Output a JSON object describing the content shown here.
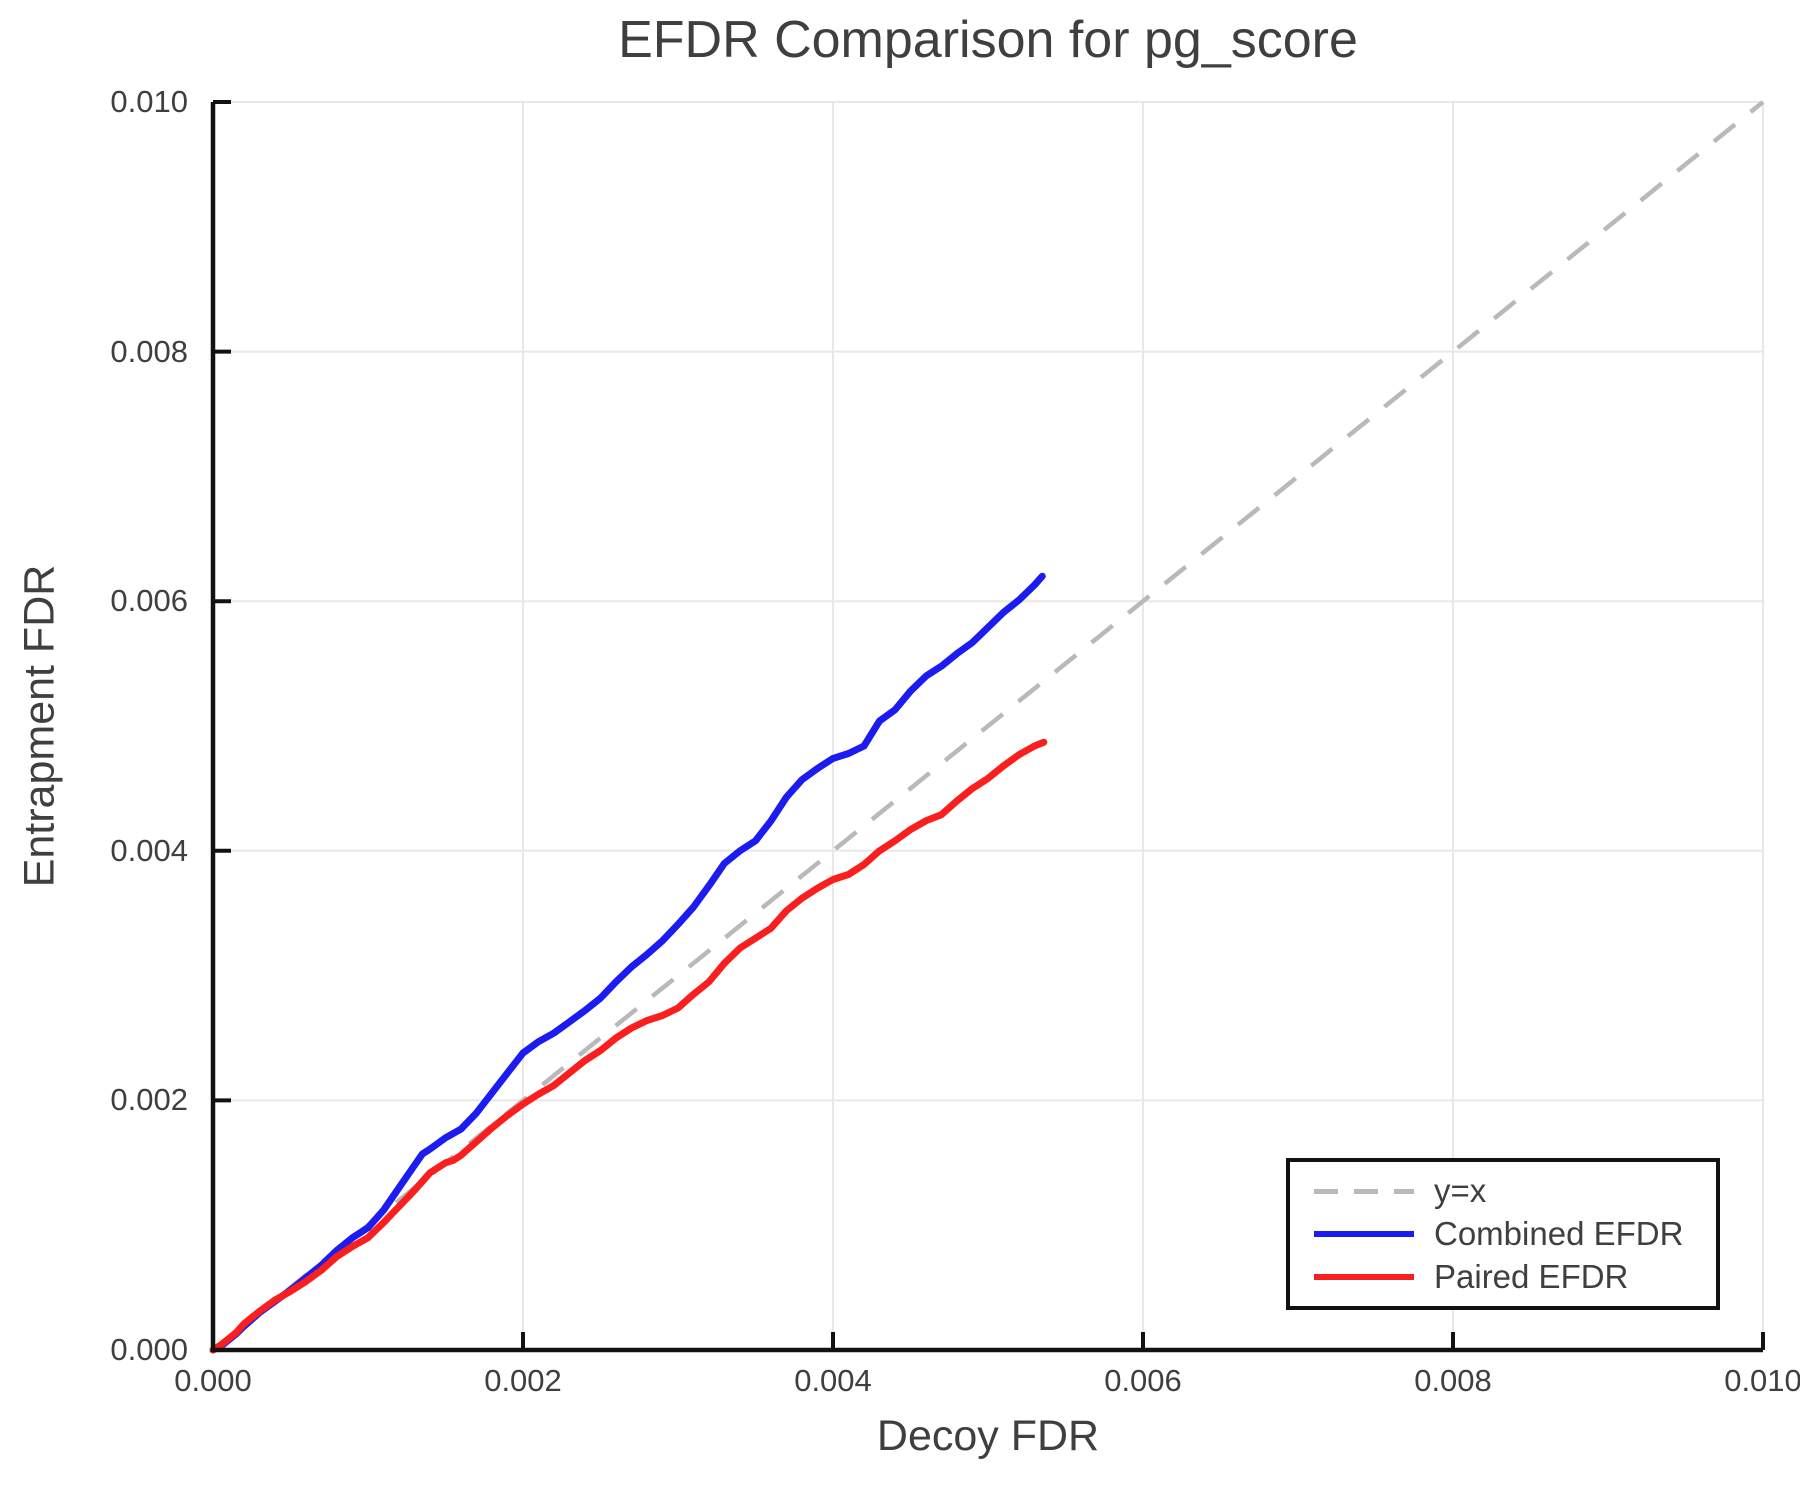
{
  "figure": {
    "background": "#ffffff"
  },
  "chart_data": {
    "type": "line",
    "title": "EFDR Comparison for pg_score",
    "xlabel": "Decoy FDR",
    "ylabel": "Entrapment FDR",
    "xlim": [
      0.0,
      0.01
    ],
    "ylim": [
      0.0,
      0.01
    ],
    "grid": true,
    "legend_position": "lower right",
    "xticks": {
      "values": [
        0.0,
        0.002,
        0.004,
        0.006,
        0.008,
        0.01
      ],
      "labels": [
        "0.000",
        "0.002",
        "0.004",
        "0.006",
        "0.008",
        "0.010"
      ]
    },
    "yticks": {
      "values": [
        0.0,
        0.002,
        0.004,
        0.006,
        0.008,
        0.01
      ],
      "labels": [
        "0.000",
        "0.002",
        "0.004",
        "0.006",
        "0.008",
        "0.010"
      ]
    },
    "colors": {
      "grid": "#e8e8e8",
      "axis": "#121212",
      "text": "#3f3f3f",
      "legend_border": "#121212"
    },
    "reference_line": {
      "label": "y=x",
      "style": "dashed",
      "color": "#b9b9b9",
      "points": [
        [
          0.0,
          0.0
        ],
        [
          0.01,
          0.01
        ]
      ]
    },
    "series": [
      {
        "name": "Combined EFDR",
        "color": "#1c1cf0",
        "points": [
          [
            0.0,
            0.0
          ],
          [
            5e-05,
            3e-05
          ],
          [
            0.0001,
            8e-05
          ],
          [
            0.00015,
            0.00013
          ],
          [
            0.0002,
            0.00019
          ],
          [
            0.0003,
            0.0003
          ],
          [
            0.0004,
            0.00039
          ],
          [
            0.0005,
            0.00048
          ],
          [
            0.0006,
            0.00058
          ],
          [
            0.0007,
            0.00068
          ],
          [
            0.0008,
            0.0008
          ],
          [
            0.0009,
            0.0009
          ],
          [
            0.001,
            0.00098
          ],
          [
            0.0011,
            0.00112
          ],
          [
            0.0012,
            0.0013
          ],
          [
            0.0013,
            0.00148
          ],
          [
            0.00135,
            0.00157
          ],
          [
            0.0014,
            0.00161
          ],
          [
            0.0015,
            0.0017
          ],
          [
            0.0016,
            0.00177
          ],
          [
            0.0017,
            0.0019
          ],
          [
            0.0018,
            0.00206
          ],
          [
            0.0019,
            0.00222
          ],
          [
            0.002,
            0.00238
          ],
          [
            0.0021,
            0.00247
          ],
          [
            0.0022,
            0.00254
          ],
          [
            0.0023,
            0.00263
          ],
          [
            0.0024,
            0.00272
          ],
          [
            0.0025,
            0.00282
          ],
          [
            0.0026,
            0.00295
          ],
          [
            0.0027,
            0.00307
          ],
          [
            0.0028,
            0.00317
          ],
          [
            0.0029,
            0.00328
          ],
          [
            0.003,
            0.00341
          ],
          [
            0.0031,
            0.00355
          ],
          [
            0.0032,
            0.00372
          ],
          [
            0.0033,
            0.0039
          ],
          [
            0.0034,
            0.004
          ],
          [
            0.0035,
            0.00408
          ],
          [
            0.0036,
            0.00424
          ],
          [
            0.0037,
            0.00443
          ],
          [
            0.0038,
            0.00457
          ],
          [
            0.0039,
            0.00466
          ],
          [
            0.004,
            0.00474
          ],
          [
            0.0041,
            0.00478
          ],
          [
            0.0042,
            0.00484
          ],
          [
            0.0043,
            0.00504
          ],
          [
            0.0044,
            0.00513
          ],
          [
            0.0045,
            0.00528
          ],
          [
            0.0046,
            0.0054
          ],
          [
            0.0047,
            0.00548
          ],
          [
            0.0048,
            0.00558
          ],
          [
            0.0049,
            0.00567
          ],
          [
            0.005,
            0.00579
          ],
          [
            0.0051,
            0.00591
          ],
          [
            0.0052,
            0.00601
          ],
          [
            0.0053,
            0.00613
          ],
          [
            0.00535,
            0.0062
          ]
        ]
      },
      {
        "name": "Paired EFDR",
        "color": "#fa1f1f",
        "points": [
          [
            0.0,
            0.0
          ],
          [
            5e-05,
            4e-05
          ],
          [
            0.0001,
            9e-05
          ],
          [
            0.00015,
            0.00014
          ],
          [
            0.0002,
            0.00021
          ],
          [
            0.0003,
            0.00031
          ],
          [
            0.0004,
            0.0004
          ],
          [
            0.0005,
            0.00047
          ],
          [
            0.0006,
            0.00055
          ],
          [
            0.0007,
            0.00064
          ],
          [
            0.0008,
            0.00075
          ],
          [
            0.0009,
            0.00083
          ],
          [
            0.001,
            0.0009
          ],
          [
            0.0011,
            0.00102
          ],
          [
            0.0012,
            0.00115
          ],
          [
            0.0013,
            0.00128
          ],
          [
            0.0014,
            0.00142
          ],
          [
            0.0015,
            0.0015
          ],
          [
            0.00155,
            0.00152
          ],
          [
            0.0016,
            0.00156
          ],
          [
            0.0017,
            0.00167
          ],
          [
            0.0018,
            0.00178
          ],
          [
            0.0019,
            0.00188
          ],
          [
            0.002,
            0.00197
          ],
          [
            0.0021,
            0.00205
          ],
          [
            0.0022,
            0.00212
          ],
          [
            0.0023,
            0.00222
          ],
          [
            0.0024,
            0.00232
          ],
          [
            0.0025,
            0.0024
          ],
          [
            0.0026,
            0.0025
          ],
          [
            0.0027,
            0.00258
          ],
          [
            0.0028,
            0.00264
          ],
          [
            0.0029,
            0.00268
          ],
          [
            0.003,
            0.00274
          ],
          [
            0.0031,
            0.00285
          ],
          [
            0.0032,
            0.00295
          ],
          [
            0.0033,
            0.0031
          ],
          [
            0.0034,
            0.00322
          ],
          [
            0.0035,
            0.0033
          ],
          [
            0.0036,
            0.00338
          ],
          [
            0.0037,
            0.00352
          ],
          [
            0.0038,
            0.00362
          ],
          [
            0.0039,
            0.0037
          ],
          [
            0.004,
            0.00377
          ],
          [
            0.0041,
            0.00381
          ],
          [
            0.0042,
            0.00389
          ],
          [
            0.0043,
            0.004
          ],
          [
            0.0044,
            0.00408
          ],
          [
            0.0045,
            0.00417
          ],
          [
            0.0046,
            0.00424
          ],
          [
            0.0047,
            0.00429
          ],
          [
            0.0048,
            0.0044
          ],
          [
            0.0049,
            0.0045
          ],
          [
            0.005,
            0.00458
          ],
          [
            0.0051,
            0.00468
          ],
          [
            0.0052,
            0.00477
          ],
          [
            0.0053,
            0.00484
          ],
          [
            0.00536,
            0.00487
          ]
        ]
      }
    ]
  }
}
